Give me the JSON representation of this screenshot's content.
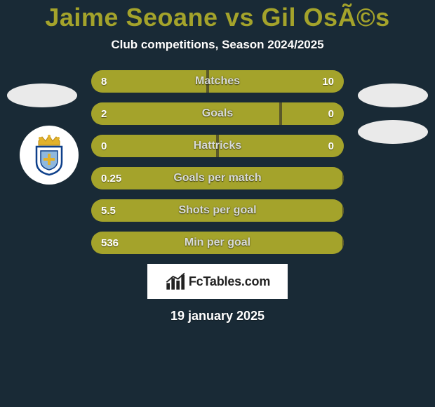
{
  "colors": {
    "bg": "#192a36",
    "title": "#a4a32b",
    "subtitle": "#ffffff",
    "avatar_placeholder": "#eaeaea",
    "club_badge_bg": "#ffffff",
    "club_crown": "#e2b22c",
    "club_shield_border": "#0d3f8a",
    "club_shield_fill": "#ffffff",
    "club_shield_inner": "#8fb8dd",
    "stat_divider": "#5a582a",
    "stat_fill_player1": "#a4a32b",
    "stat_fill_player2": "#a4a32b",
    "stat_label": "#d8dbd8",
    "stat_value": "#ffffff",
    "fctables_bg": "#ffffff",
    "fctables_text": "#222222",
    "date": "#ffffff"
  },
  "title": "Jaime Seoane vs Gil OsÃ©s",
  "subtitle": "Club competitions, Season 2024/2025",
  "date": "19 january 2025",
  "fctables_label": "FcTables.com",
  "stats": [
    {
      "label": "Matches",
      "left_val": "8",
      "right_val": "10",
      "left_pct": 46,
      "right_pct": 54
    },
    {
      "label": "Goals",
      "left_val": "2",
      "right_val": "0",
      "left_pct": 75,
      "right_pct": 25
    },
    {
      "label": "Hattricks",
      "left_val": "0",
      "right_val": "0",
      "left_pct": 50,
      "right_pct": 50
    },
    {
      "label": "Goals per match",
      "left_val": "0.25",
      "right_val": "",
      "left_pct": 100,
      "right_pct": 0
    },
    {
      "label": "Shots per goal",
      "left_val": "5.5",
      "right_val": "",
      "left_pct": 100,
      "right_pct": 0
    },
    {
      "label": "Min per goal",
      "left_val": "536",
      "right_val": "",
      "left_pct": 100,
      "right_pct": 0
    }
  ]
}
